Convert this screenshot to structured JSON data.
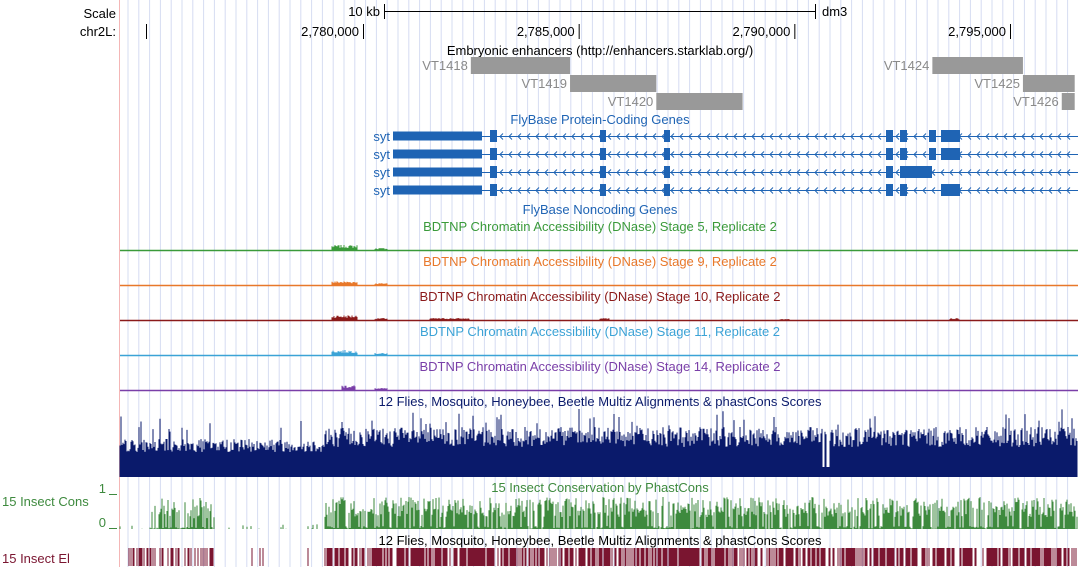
{
  "ruler": {
    "scale_label": "Scale",
    "scale_bar_label": "10 kb",
    "assembly": "dm3",
    "chrom_label": "chr2L:",
    "ticks": [
      {
        "pos": 2780000,
        "label": "2,780,000"
      },
      {
        "pos": 2785000,
        "label": "2,785,000"
      },
      {
        "pos": 2790000,
        "label": "2,790,000"
      },
      {
        "pos": 2795000,
        "label": "2,795,000"
      }
    ],
    "view_start": 2775000,
    "view_end": 2796500
  },
  "enhancers": {
    "title": "Embryonic enhancers (http://enhancers.starklab.org/)",
    "color": "#999999",
    "items": [
      {
        "name": "VT1418",
        "start": 2782500,
        "end": 2784800
      },
      {
        "name": "VT1419",
        "start": 2784800,
        "end": 2786800
      },
      {
        "name": "VT1420",
        "start": 2786800,
        "end": 2788800
      },
      {
        "name": "VT1424",
        "start": 2793200,
        "end": 2795300
      },
      {
        "name": "VT1425",
        "start": 2795300,
        "end": 2796500
      },
      {
        "name": "VT1426",
        "start": 2796200,
        "end": 2796500
      }
    ]
  },
  "genes": {
    "title": "FlyBase Protein-Coding Genes",
    "noncoding_title": "FlyBase Noncoding Genes",
    "color": "#1f64b4",
    "transcripts": [
      {
        "name": "syt",
        "start": 2780800,
        "end": 2795800
      },
      {
        "name": "syt",
        "start": 2780800,
        "end": 2795800
      },
      {
        "name": "syt",
        "start": 2780800,
        "end": 2795800
      },
      {
        "name": "syt",
        "start": 2780800,
        "end": 2795800
      }
    ]
  },
  "dnase_tracks": [
    {
      "title": "BDTNP Chromatin Accessibility (DNase) Stage 5, Replicate 2",
      "color": "#3a9a3a"
    },
    {
      "title": "BDTNP Chromatin Accessibility (DNase) Stage 9, Replicate 2",
      "color": "#e8782a"
    },
    {
      "title": "BDTNP Chromatin Accessibility (DNase) Stage 10, Replicate 2",
      "color": "#8b1a1a"
    },
    {
      "title": "BDTNP Chromatin Accessibility (DNase) Stage 11, Replicate 2",
      "color": "#3ba3d6"
    },
    {
      "title": "BDTNP Chromatin Accessibility (DNase) Stage 14, Replicate 2",
      "color": "#7a3fa8"
    }
  ],
  "multiz": {
    "title": "12 Flies, Mosquito, Honeybee, Beetle Multiz Alignments & phastCons Scores",
    "color": "#0a1a6b"
  },
  "phastcons": {
    "title": "15 Insect Conservation by PhastCons",
    "side_label": "15 Insect Cons",
    "y_max_label": "1",
    "y_min_label": "0",
    "color": "#3e8a3e"
  },
  "elements": {
    "title": "12 Flies, Mosquito, Honeybee, Beetle Multiz Alignments & phastCons Scores",
    "side_label": "15 Insect El",
    "color": "#7a1530"
  }
}
